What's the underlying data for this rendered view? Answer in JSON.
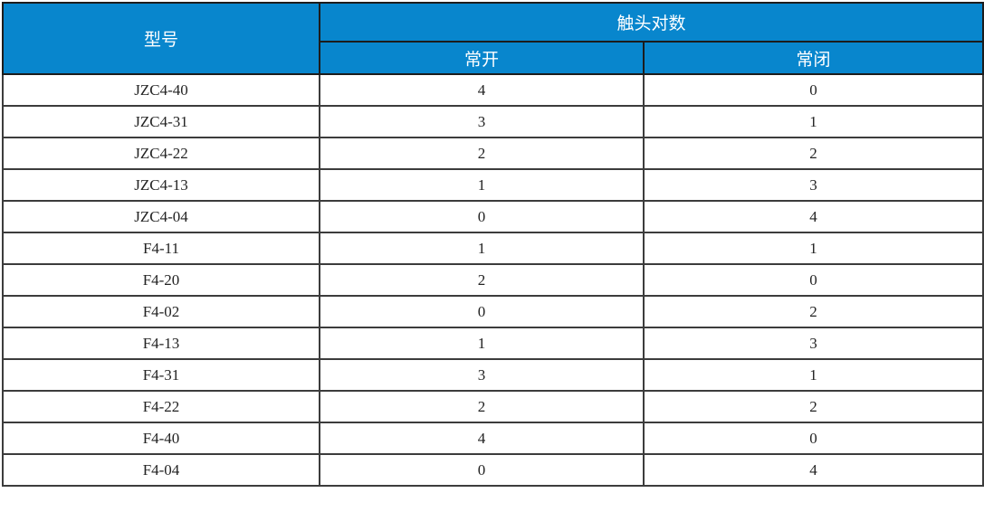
{
  "table": {
    "header": {
      "model_label": "型号",
      "contact_pairs_label": "触头对数",
      "normally_open_label": "常开",
      "normally_closed_label": "常闭"
    },
    "rows": [
      {
        "model": "JZC4-40",
        "normally_open": "4",
        "normally_closed": "0"
      },
      {
        "model": "JZC4-31",
        "normally_open": "3",
        "normally_closed": "1"
      },
      {
        "model": "JZC4-22",
        "normally_open": "2",
        "normally_closed": "2"
      },
      {
        "model": "JZC4-13",
        "normally_open": "1",
        "normally_closed": "3"
      },
      {
        "model": "JZC4-04",
        "normally_open": "0",
        "normally_closed": "4"
      },
      {
        "model": "F4-11",
        "normally_open": "1",
        "normally_closed": "1"
      },
      {
        "model": "F4-20",
        "normally_open": "2",
        "normally_closed": "0"
      },
      {
        "model": "F4-02",
        "normally_open": "0",
        "normally_closed": "2"
      },
      {
        "model": "F4-13",
        "normally_open": "1",
        "normally_closed": "3"
      },
      {
        "model": "F4-31",
        "normally_open": "3",
        "normally_closed": "1"
      },
      {
        "model": "F4-22",
        "normally_open": "2",
        "normally_closed": "2"
      },
      {
        "model": "F4-40",
        "normally_open": "4",
        "normally_closed": "0"
      },
      {
        "model": "F4-04",
        "normally_open": "0",
        "normally_closed": "4"
      }
    ],
    "colors": {
      "header_bg": "#0886cd",
      "header_text": "#ffffff",
      "border_outer": "#1c1c1c",
      "border_inner": "#3c3c3c",
      "body_text": "#232323",
      "page_bg": "#ffffff"
    }
  }
}
